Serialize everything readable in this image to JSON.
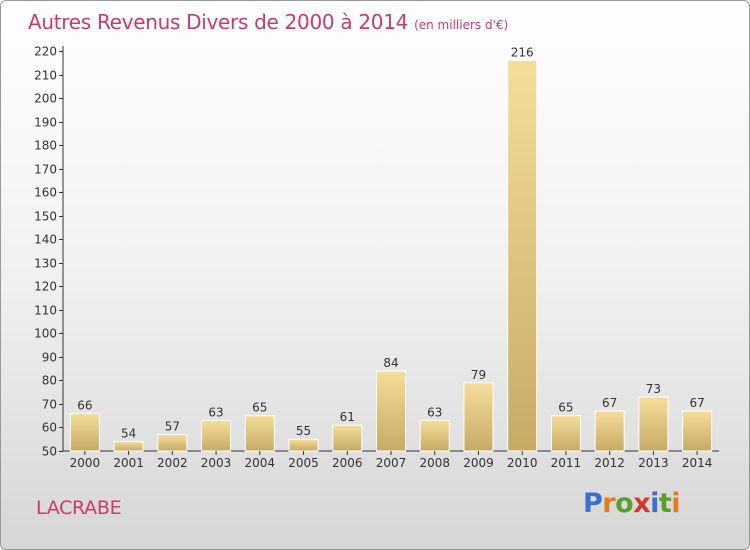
{
  "header": {
    "title": "Autres Revenus Divers de 2000 à 2014",
    "unit": "(en milliers d'€)"
  },
  "footer": {
    "location": "LACRABE",
    "brand_letters": [
      "P",
      "r",
      "o",
      "x",
      "i",
      "t",
      "i"
    ]
  },
  "colors": {
    "title": "#d0386b",
    "bar_light": "#f5dd9b",
    "bar_dark": "#c7aa64",
    "axis": "#333333",
    "brand": [
      "#3b6fcf",
      "#e67b1c",
      "#5aa02c",
      "#d03a2c",
      "#3b6fcf",
      "#5aa02c",
      "#e67b1c"
    ]
  },
  "chart_data": {
    "type": "bar",
    "categories": [
      "2000",
      "2001",
      "2002",
      "2003",
      "2004",
      "2005",
      "2006",
      "2007",
      "2008",
      "2009",
      "2010",
      "2011",
      "2012",
      "2013",
      "2014"
    ],
    "values": [
      66,
      54,
      57,
      63,
      65,
      55,
      61,
      84,
      63,
      79,
      216,
      65,
      67,
      73,
      67
    ],
    "ylim": [
      50,
      220
    ],
    "yticks": [
      50,
      60,
      70,
      80,
      90,
      100,
      110,
      120,
      130,
      140,
      150,
      160,
      170,
      180,
      190,
      200,
      210,
      220
    ],
    "grid": false,
    "data_labels": true
  }
}
